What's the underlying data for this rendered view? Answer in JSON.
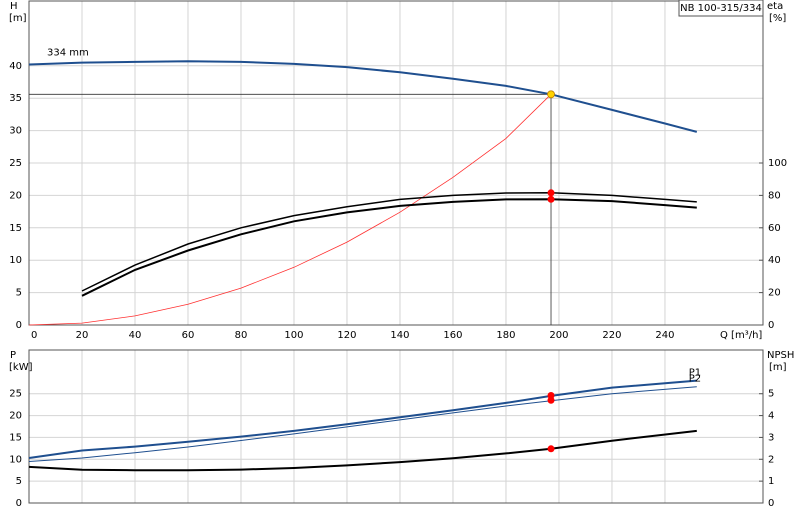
{
  "chart_data": [
    {
      "type": "line",
      "title": "NB 100-315/334",
      "xlabel": "Q [m³/h]",
      "ylabel": "H",
      "yunit": "[m]",
      "y2label": "eta",
      "y2unit": "[%]",
      "xlim": [
        0,
        277
      ],
      "xticks": [
        0,
        20,
        40,
        60,
        80,
        100,
        120,
        140,
        160,
        180,
        200,
        220,
        240
      ],
      "ylim": [
        0,
        50
      ],
      "yticks": [
        0,
        5,
        10,
        15,
        20,
        25,
        30,
        35,
        40
      ],
      "y2lim": [
        0,
        200
      ],
      "y2ticks": [
        0,
        20,
        40,
        60,
        80,
        100
      ],
      "grid": true,
      "show_xtick_labels": true,
      "series": [
        {
          "name": "334 mm",
          "color": "#1f4f8f",
          "linewidth": 2,
          "axis": "y",
          "x": [
            0,
            20,
            40,
            60,
            80,
            100,
            120,
            140,
            160,
            180,
            197,
            220,
            240,
            252
          ],
          "values": [
            40.2,
            40.5,
            40.6,
            40.7,
            40.6,
            40.3,
            39.8,
            39.0,
            38.0,
            36.9,
            35.6,
            33.2,
            31.1,
            29.8
          ]
        },
        {
          "color": "#ff3030",
          "linewidth": 0.8,
          "axis": "y",
          "x": [
            0,
            20,
            40,
            60,
            80,
            100,
            120,
            140,
            160,
            180,
            197
          ],
          "values": [
            0,
            0.3,
            1.4,
            3.2,
            5.7,
            8.9,
            12.8,
            17.4,
            22.8,
            28.8,
            35.6
          ]
        },
        {
          "color": "#000000",
          "linewidth": 1.5,
          "axis": "y2",
          "x": [
            20,
            40,
            60,
            80,
            100,
            120,
            140,
            160,
            180,
            197,
            220,
            240,
            252
          ],
          "values": [
            21,
            37,
            50,
            60,
            67.5,
            73,
            77.5,
            80,
            81.5,
            81.6,
            80,
            77.5,
            76
          ]
        },
        {
          "color": "#000000",
          "linewidth": 2,
          "axis": "y2",
          "x": [
            20,
            40,
            60,
            80,
            100,
            120,
            140,
            160,
            180,
            197,
            220,
            240,
            252
          ],
          "values": [
            18,
            34,
            46,
            56,
            64,
            69.5,
            73.5,
            76,
            77.5,
            77.6,
            76.5,
            74,
            72.5
          ]
        }
      ],
      "markers": [
        {
          "x": 197,
          "value": 35.6,
          "axis": "y",
          "color": "#ffd200",
          "guides": true
        },
        {
          "x": 197,
          "value": 81.6,
          "axis": "y2",
          "color": "#ff0000"
        },
        {
          "x": 197,
          "value": 77.6,
          "axis": "y2",
          "color": "#ff0000"
        }
      ]
    },
    {
      "type": "line",
      "ylabel": "P",
      "yunit": "[kW]",
      "y2label": "NPSH",
      "y2unit": "[m]",
      "xlim": [
        0,
        277
      ],
      "xticks": [
        0,
        20,
        40,
        60,
        80,
        100,
        120,
        140,
        160,
        180,
        200,
        220,
        240
      ],
      "ylim": [
        0,
        35
      ],
      "yticks": [
        0,
        5,
        10,
        15,
        20,
        25
      ],
      "y2lim": [
        0,
        7
      ],
      "y2ticks": [
        0,
        1,
        2,
        3,
        4,
        5
      ],
      "grid": true,
      "show_xtick_labels": false,
      "series": [
        {
          "name": "P1",
          "color": "#1f4f8f",
          "linewidth": 2,
          "axis": "y",
          "x": [
            0,
            20,
            40,
            60,
            80,
            100,
            120,
            140,
            160,
            180,
            197,
            220,
            252
          ],
          "values": [
            10.3,
            12,
            12.9,
            14,
            15.2,
            16.5,
            18,
            19.6,
            21.2,
            22.9,
            24.5,
            26.4,
            28
          ]
        },
        {
          "name": "P2",
          "color": "#1f4f8f",
          "linewidth": 1,
          "axis": "y",
          "x": [
            0,
            20,
            40,
            60,
            80,
            100,
            120,
            140,
            160,
            180,
            197,
            220,
            252
          ],
          "values": [
            9.5,
            10.3,
            11.5,
            12.8,
            14.3,
            15.8,
            17.4,
            19,
            20.6,
            22.2,
            23.4,
            25,
            26.6
          ]
        },
        {
          "color": "#000000",
          "linewidth": 2,
          "axis": "y2",
          "x": [
            0,
            20,
            40,
            60,
            80,
            100,
            120,
            140,
            160,
            180,
            197,
            220,
            252
          ],
          "values": [
            1.65,
            1.52,
            1.5,
            1.5,
            1.53,
            1.6,
            1.72,
            1.87,
            2.05,
            2.27,
            2.48,
            2.85,
            3.3
          ]
        }
      ],
      "markers": [
        {
          "x": 197,
          "value": 24.6,
          "axis": "y",
          "color": "#ff0000"
        },
        {
          "x": 197,
          "value": 23.5,
          "axis": "y",
          "color": "#ff0000"
        },
        {
          "x": 197,
          "value": 2.48,
          "axis": "y2",
          "color": "#ff0000"
        }
      ]
    }
  ]
}
